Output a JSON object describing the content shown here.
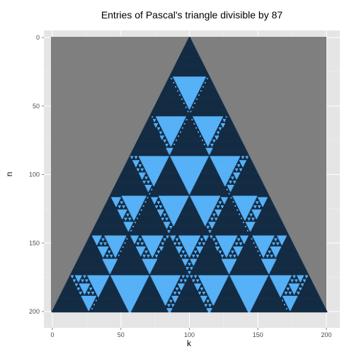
{
  "chart_data": {
    "type": "heatmap",
    "title": "Entries of Pascal's triangle divisible by 87",
    "xlabel": "k",
    "ylabel": "n",
    "xlim": [
      0,
      200
    ],
    "ylim": [
      200,
      0
    ],
    "n_rows": 200,
    "divisor": 87,
    "x_ticks": [
      0,
      50,
      100,
      150,
      200
    ],
    "y_ticks": [
      0,
      50,
      100,
      150,
      200
    ],
    "y_reversed": true,
    "grid": true,
    "colors": {
      "panel_background": "#e5e5e5",
      "gridline": "#f2f2f2",
      "outside_triangle": "#7f7f7f",
      "not_divisible": "#132b43",
      "divisible": "#56b1f7"
    }
  }
}
